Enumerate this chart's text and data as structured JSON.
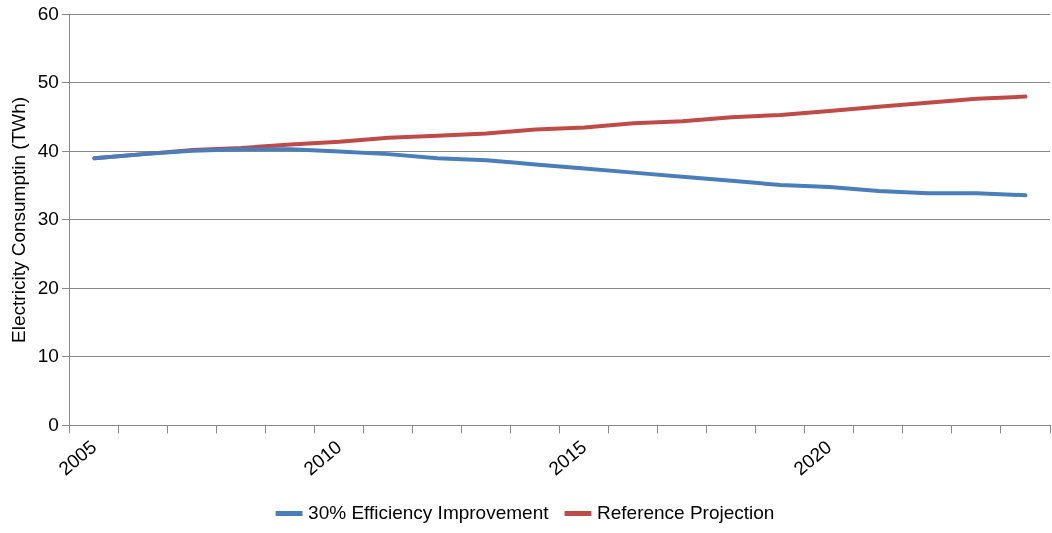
{
  "chart_data": {
    "type": "line",
    "ylabel": "Electricity Consumptin (TWh)",
    "categories": [
      "2005",
      null,
      null,
      null,
      null,
      "2010",
      null,
      null,
      null,
      null,
      "2015",
      null,
      null,
      null,
      null,
      "2020",
      null,
      null,
      null,
      null
    ],
    "series": [
      {
        "name": "30% Efficiency Improvement",
        "color": "#4a7ebb",
        "values": [
          39,
          39.6,
          40.1,
          40.3,
          40.3,
          40,
          39.6,
          39,
          38.7,
          38.1,
          37.5,
          36.9,
          36.3,
          35.7,
          35.1,
          34.8,
          34.2,
          33.9,
          33.9,
          33.6
        ]
      },
      {
        "name": "Reference Projection",
        "color": "#be4b48",
        "values": [
          39,
          39.6,
          40.2,
          40.5,
          41,
          41.4,
          42,
          42.3,
          42.6,
          43.2,
          43.5,
          44.1,
          44.4,
          45,
          45.3,
          45.9,
          46.5,
          47.1,
          47.7,
          48
        ]
      }
    ],
    "ylim": [
      0,
      60
    ],
    "yticks": [
      0,
      10,
      20,
      30,
      40,
      50,
      60
    ],
    "grid": "y",
    "legend": "bottom",
    "marker": "none",
    "line_style": "solid"
  }
}
